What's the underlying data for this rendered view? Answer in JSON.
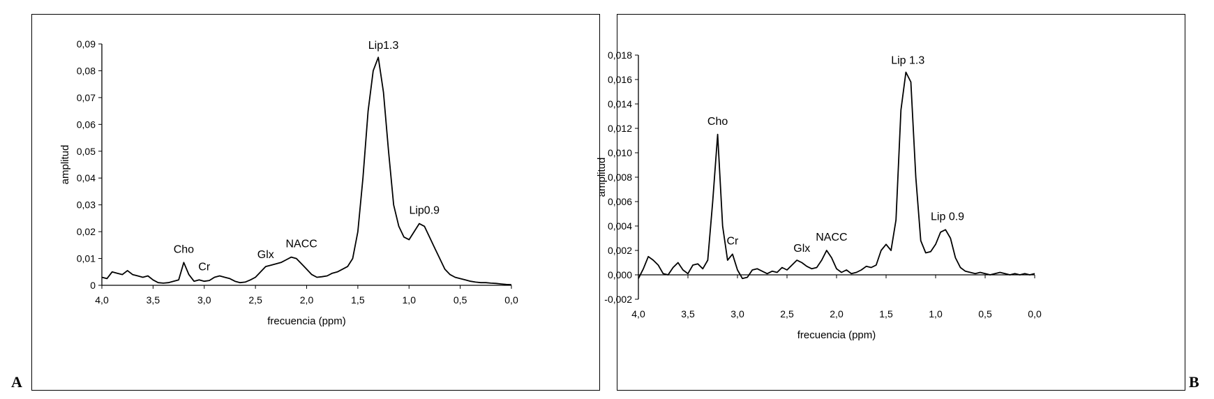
{
  "panels": {
    "a": {
      "letter": "A"
    },
    "b": {
      "letter": "B"
    }
  },
  "chart_data": [
    {
      "type": "line",
      "panel": "A",
      "xlabel": "frecuencia (ppm)",
      "ylabel": "amplitud",
      "xlim": [
        4.0,
        0.0
      ],
      "ylim": [
        0,
        0.09
      ],
      "x_reversed": true,
      "grid": false,
      "legend": "none",
      "xticks": [
        4.0,
        3.5,
        3.0,
        2.5,
        2.0,
        1.5,
        1.0,
        0.5,
        0.0
      ],
      "xtick_labels": [
        "4,0",
        "3,5",
        "3,0",
        "2,5",
        "2,0",
        "1,5",
        "1,0",
        "0,5",
        "0,0"
      ],
      "yticks": [
        0,
        0.01,
        0.02,
        0.03,
        0.04,
        0.05,
        0.06,
        0.07,
        0.08,
        0.09
      ],
      "ytick_labels": [
        "0",
        "0,01",
        "0,02",
        "0,03",
        "0,04",
        "0,05",
        "0,06",
        "0,07",
        "0,08",
        "0,09"
      ],
      "series": [
        {
          "x": [
            4.0,
            3.95,
            3.9,
            3.85,
            3.8,
            3.75,
            3.7,
            3.65,
            3.6,
            3.55,
            3.5,
            3.45,
            3.4,
            3.35,
            3.3,
            3.25,
            3.2,
            3.15,
            3.1,
            3.05,
            3.0,
            2.95,
            2.9,
            2.85,
            2.8,
            2.75,
            2.7,
            2.65,
            2.6,
            2.55,
            2.5,
            2.45,
            2.4,
            2.35,
            2.3,
            2.25,
            2.2,
            2.15,
            2.1,
            2.05,
            2.0,
            1.95,
            1.9,
            1.85,
            1.8,
            1.75,
            1.7,
            1.65,
            1.6,
            1.55,
            1.5,
            1.45,
            1.4,
            1.35,
            1.3,
            1.25,
            1.2,
            1.15,
            1.1,
            1.05,
            1.0,
            0.95,
            0.9,
            0.85,
            0.8,
            0.75,
            0.7,
            0.65,
            0.6,
            0.55,
            0.5,
            0.45,
            0.4,
            0.35,
            0.3,
            0.25,
            0.2,
            0.15,
            0.1,
            0.05,
            0.0
          ],
          "y": [
            0.003,
            0.0025,
            0.005,
            0.0045,
            0.004,
            0.0055,
            0.004,
            0.0035,
            0.003,
            0.0035,
            0.002,
            0.001,
            0.0008,
            0.001,
            0.0015,
            0.002,
            0.0085,
            0.004,
            0.0015,
            0.002,
            0.0015,
            0.0018,
            0.003,
            0.0035,
            0.003,
            0.0025,
            0.0015,
            0.001,
            0.0012,
            0.002,
            0.003,
            0.005,
            0.007,
            0.0075,
            0.008,
            0.0085,
            0.0095,
            0.0105,
            0.01,
            0.008,
            0.006,
            0.004,
            0.003,
            0.0032,
            0.0035,
            0.0045,
            0.005,
            0.006,
            0.007,
            0.01,
            0.02,
            0.04,
            0.065,
            0.08,
            0.085,
            0.072,
            0.05,
            0.03,
            0.022,
            0.018,
            0.017,
            0.02,
            0.023,
            0.022,
            0.018,
            0.014,
            0.01,
            0.006,
            0.004,
            0.003,
            0.0025,
            0.002,
            0.0015,
            0.0012,
            0.001,
            0.001,
            0.0008,
            0.0007,
            0.0005,
            0.0003,
            0.0002
          ]
        }
      ],
      "annotations": [
        {
          "text": "Cho",
          "x": 3.2,
          "y": 0.0085
        },
        {
          "text": "Cr",
          "x": 3.0,
          "y": 0.002
        },
        {
          "text": "Glx",
          "x": 2.4,
          "y": 0.007
        },
        {
          "text": "NACC",
          "x": 2.05,
          "y": 0.0105
        },
        {
          "text": "Lip1.3",
          "x": 1.25,
          "y": 0.085
        },
        {
          "text": "Lip0.9",
          "x": 0.85,
          "y": 0.023
        }
      ]
    },
    {
      "type": "line",
      "panel": "B",
      "xlabel": "frecuencia (ppm)",
      "ylabel": "amplitud",
      "xlim": [
        4.0,
        0.0
      ],
      "ylim": [
        -0.002,
        0.018
      ],
      "x_reversed": true,
      "grid": false,
      "legend": "none",
      "xticks": [
        4.0,
        3.5,
        3.0,
        2.5,
        2.0,
        1.5,
        1.0,
        0.5,
        0.0
      ],
      "xtick_labels": [
        "4,0",
        "3,5",
        "3,0",
        "2,5",
        "2,0",
        "1,5",
        "1,0",
        "0,5",
        "0,0"
      ],
      "yticks": [
        -0.002,
        0.0,
        0.002,
        0.004,
        0.006,
        0.008,
        0.01,
        0.012,
        0.014,
        0.016,
        0.018
      ],
      "ytick_labels": [
        "-0,002",
        "0,000",
        "0,002",
        "0,004",
        "0,006",
        "0,008",
        "0,010",
        "0,012",
        "0,014",
        "0,016",
        "0,018"
      ],
      "series": [
        {
          "x": [
            4.0,
            3.95,
            3.9,
            3.85,
            3.8,
            3.75,
            3.7,
            3.65,
            3.6,
            3.55,
            3.5,
            3.45,
            3.4,
            3.35,
            3.3,
            3.25,
            3.2,
            3.15,
            3.1,
            3.05,
            3.0,
            2.95,
            2.9,
            2.85,
            2.8,
            2.75,
            2.7,
            2.65,
            2.6,
            2.55,
            2.5,
            2.45,
            2.4,
            2.35,
            2.3,
            2.25,
            2.2,
            2.15,
            2.1,
            2.05,
            2.0,
            1.95,
            1.9,
            1.85,
            1.8,
            1.75,
            1.7,
            1.65,
            1.6,
            1.55,
            1.5,
            1.45,
            1.4,
            1.35,
            1.3,
            1.25,
            1.2,
            1.15,
            1.1,
            1.05,
            1.0,
            0.95,
            0.9,
            0.85,
            0.8,
            0.75,
            0.7,
            0.65,
            0.6,
            0.55,
            0.5,
            0.45,
            0.4,
            0.35,
            0.3,
            0.25,
            0.2,
            0.15,
            0.1,
            0.05,
            0.0
          ],
          "y": [
            -0.0003,
            0.0005,
            0.0015,
            0.0012,
            0.0008,
            0.0001,
            0.0,
            0.0006,
            0.001,
            0.0004,
            0.0001,
            0.0008,
            0.0009,
            0.0005,
            0.0012,
            0.006,
            0.0115,
            0.004,
            0.0012,
            0.0017,
            0.0004,
            -0.0003,
            -0.0002,
            0.0004,
            0.0005,
            0.0003,
            0.0001,
            0.0003,
            0.0002,
            0.0006,
            0.0004,
            0.0008,
            0.0012,
            0.001,
            0.0007,
            0.0005,
            0.0006,
            0.0012,
            0.002,
            0.0014,
            0.0005,
            0.0002,
            0.0004,
            0.0001,
            0.0002,
            0.0004,
            0.0007,
            0.0006,
            0.0008,
            0.002,
            0.0025,
            0.002,
            0.0045,
            0.0135,
            0.0166,
            0.0158,
            0.008,
            0.0028,
            0.0018,
            0.0019,
            0.0025,
            0.0035,
            0.0037,
            0.003,
            0.0014,
            0.0006,
            0.0003,
            0.0002,
            0.0001,
            0.0002,
            0.0001,
            0.0,
            0.0001,
            0.0002,
            0.0001,
            0.0,
            0.0001,
            0.0,
            0.0001,
            0.0,
            0.0001
          ]
        }
      ],
      "annotations": [
        {
          "text": "Cho",
          "x": 3.2,
          "y": 0.0115
        },
        {
          "text": "Cr",
          "x": 3.05,
          "y": 0.0017
        },
        {
          "text": "Glx",
          "x": 2.35,
          "y": 0.0012
        },
        {
          "text": "NACC",
          "x": 2.05,
          "y": 0.002
        },
        {
          "text": "Lip 1.3",
          "x": 1.28,
          "y": 0.0166
        },
        {
          "text": "Lip 0.9",
          "x": 0.88,
          "y": 0.0037
        }
      ]
    }
  ]
}
